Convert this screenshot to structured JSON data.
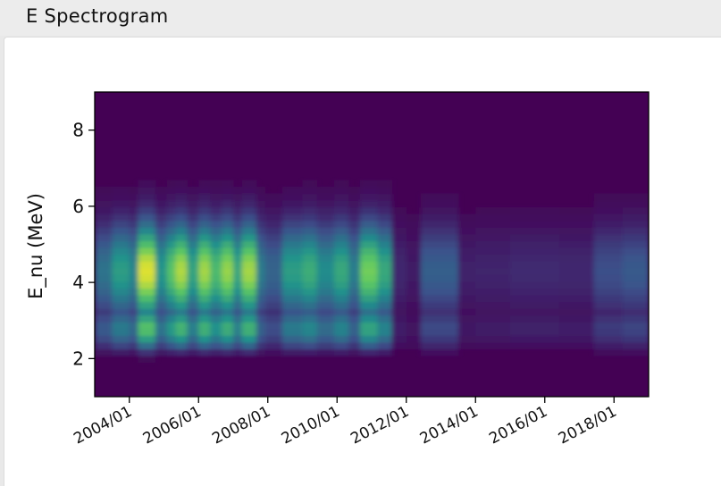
{
  "panel": {
    "title": "E Spectrogram"
  },
  "chart_data": {
    "type": "heatmap",
    "colormap": "viridis",
    "colors": {
      "cmap_stops": [
        "#440154",
        "#3b528b",
        "#21918c",
        "#5ec962",
        "#fde725"
      ],
      "axis": "#000000"
    },
    "ylabel": "E_nu (MeV)",
    "xlabel": "",
    "title": "",
    "xlim": [
      "2003-01",
      "2019-01"
    ],
    "ylim": [
      1,
      9
    ],
    "x_ticks": [
      "2004/01",
      "2006/01",
      "2008/01",
      "2010/01",
      "2012/01",
      "2014/01",
      "2016/01",
      "2018/01"
    ],
    "y_ticks": [
      2,
      4,
      6,
      8
    ],
    "energy_min": 1.9,
    "grid": false,
    "intensity_range": [
      0,
      1
    ],
    "segments": [
      {
        "start": "2003-01",
        "end": "2003-07",
        "intensity": 0.38
      },
      {
        "start": "2003-07",
        "end": "2004-01",
        "intensity": 0.55
      },
      {
        "start": "2004-01",
        "end": "2004-04",
        "intensity": 0.45
      },
      {
        "start": "2004-04",
        "end": "2004-10",
        "intensity": 0.95
      },
      {
        "start": "2004-10",
        "end": "2005-02",
        "intensity": 0.52
      },
      {
        "start": "2005-02",
        "end": "2005-05",
        "intensity": 0.72
      },
      {
        "start": "2005-05",
        "end": "2005-09",
        "intensity": 0.88
      },
      {
        "start": "2005-09",
        "end": "2006-01",
        "intensity": 0.58
      },
      {
        "start": "2006-01",
        "end": "2006-05",
        "intensity": 0.86
      },
      {
        "start": "2006-05",
        "end": "2006-09",
        "intensity": 0.68
      },
      {
        "start": "2006-09",
        "end": "2007-01",
        "intensity": 0.84
      },
      {
        "start": "2007-01",
        "end": "2007-04",
        "intensity": 0.58
      },
      {
        "start": "2007-04",
        "end": "2007-09",
        "intensity": 0.86
      },
      {
        "start": "2007-09",
        "end": "2007-12",
        "intensity": 0.42
      },
      {
        "start": "2007-12",
        "end": "2008-06",
        "intensity": 0.32
      },
      {
        "start": "2008-06",
        "end": "2009-01",
        "intensity": 0.55
      },
      {
        "start": "2009-01",
        "end": "2009-06",
        "intensity": 0.62
      },
      {
        "start": "2009-06",
        "end": "2009-12",
        "intensity": 0.48
      },
      {
        "start": "2009-12",
        "end": "2010-05",
        "intensity": 0.6
      },
      {
        "start": "2010-05",
        "end": "2010-09",
        "intensity": 0.42
      },
      {
        "start": "2010-09",
        "end": "2011-03",
        "intensity": 0.78
      },
      {
        "start": "2011-03",
        "end": "2011-08",
        "intensity": 0.6
      },
      {
        "start": "2011-08",
        "end": "2012-01",
        "intensity": 0.12
      },
      {
        "start": "2012-01",
        "end": "2012-06",
        "intensity": 0.08
      },
      {
        "start": "2012-06",
        "end": "2013-07",
        "intensity": 0.3
      },
      {
        "start": "2013-07",
        "end": "2014-01",
        "intensity": 0.1
      },
      {
        "start": "2014-01",
        "end": "2015-01",
        "intensity": 0.11
      },
      {
        "start": "2015-01",
        "end": "2016-06",
        "intensity": 0.13
      },
      {
        "start": "2016-06",
        "end": "2017-06",
        "intensity": 0.12
      },
      {
        "start": "2017-06",
        "end": "2018-04",
        "intensity": 0.24
      },
      {
        "start": "2018-04",
        "end": "2019-01",
        "intensity": 0.28
      }
    ]
  }
}
